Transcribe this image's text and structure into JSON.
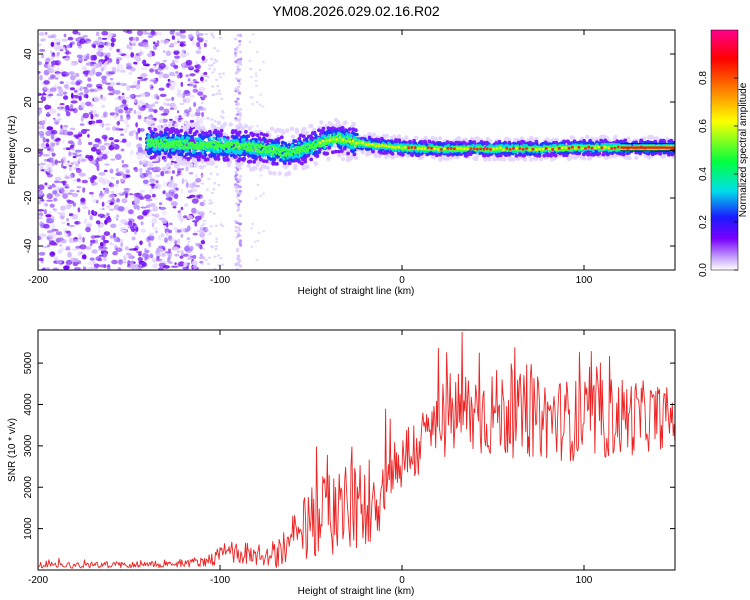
{
  "title": "YM08.2026.029.02.16.R02",
  "chart_data": [
    {
      "type": "heatmap",
      "name": "spectrogram",
      "xlabel": "Height of straight line (km)",
      "ylabel": "Frequency (Hz)",
      "xlim": [
        -200,
        150
      ],
      "ylim": [
        -50,
        50
      ],
      "xticks": [
        -200,
        -100,
        0,
        100
      ],
      "xtick_labels": [
        "-200",
        "-100",
        "0",
        "100"
      ],
      "yticks": [
        -40,
        -20,
        0,
        20,
        40
      ],
      "ytick_labels": [
        "-40",
        "-20",
        "0",
        "20",
        "40"
      ],
      "colorbar": {
        "label": "Normalized spectral amplitude",
        "range": [
          0,
          1
        ],
        "ticks": [
          0.0,
          0.2,
          0.4,
          0.6,
          0.8
        ],
        "tick_labels": [
          "0.0",
          "0.2",
          "0.4",
          "0.6",
          "0.8"
        ]
      },
      "features": {
        "scatter_noise_region": [
          -200,
          -108
        ],
        "isolated_strip_center": -90,
        "signal_band_start": -140,
        "signal_center_frequency_hz": [
          [
            -140,
            3
          ],
          [
            -110,
            2
          ],
          [
            -95,
            2
          ],
          [
            -80,
            1
          ],
          [
            -65,
            -1
          ],
          [
            -55,
            0
          ],
          [
            -45,
            3
          ],
          [
            -35,
            5
          ],
          [
            -25,
            3
          ],
          [
            -15,
            2
          ],
          [
            0,
            1
          ],
          [
            20,
            0.5
          ],
          [
            50,
            0.5
          ],
          [
            80,
            0.5
          ],
          [
            100,
            1
          ],
          [
            120,
            1
          ],
          [
            150,
            1
          ]
        ],
        "solid_peak_start": 120
      }
    },
    {
      "type": "line",
      "name": "snr",
      "xlabel": "Height of straight line (km)",
      "ylabel": "SNR (10 * v/v)",
      "xlim": [
        -200,
        150
      ],
      "ylim": [
        0,
        5800
      ],
      "xticks": [
        -200,
        -100,
        0,
        100
      ],
      "xtick_labels": [
        "-200",
        "-100",
        "0",
        "100"
      ],
      "yticks": [
        1000,
        2000,
        3000,
        4000,
        5000
      ],
      "ytick_labels": [
        "1000",
        "2000",
        "3000",
        "4000",
        "5000"
      ],
      "series": [
        {
          "name": "SNR",
          "color": "#ee2222",
          "envelope": {
            "x": [
              -200,
              -150,
              -120,
              -105,
              -95,
              -85,
              -75,
              -65,
              -55,
              -45,
              -35,
              -25,
              -18,
              -10,
              -5,
              0,
              10,
              20,
              30,
              50,
              70,
              100,
              120,
              150
            ],
            "mean": [
              120,
              130,
              150,
              250,
              450,
              350,
              300,
              500,
              900,
              1300,
              1500,
              1500,
              1700,
              1900,
              2400,
              2700,
              3000,
              3600,
              3800,
              3800,
              3700,
              3600,
              3700,
              3700
            ],
            "spread": [
              80,
              80,
              90,
              150,
              300,
              200,
              200,
              500,
              800,
              1000,
              1100,
              1100,
              1100,
              1000,
              900,
              800,
              800,
              1000,
              1100,
              1100,
              1000,
              1000,
              1000,
              700
            ],
            "max": [
              280,
              280,
              300,
              500,
              900,
              700,
              700,
              1400,
              2600,
              3600,
              3400,
              3300,
              4800,
              3900,
              4300,
              4000,
              4600,
              5400,
              5800,
              5700,
              5300,
              5500,
              5600,
              5100
            ]
          }
        }
      ]
    }
  ]
}
